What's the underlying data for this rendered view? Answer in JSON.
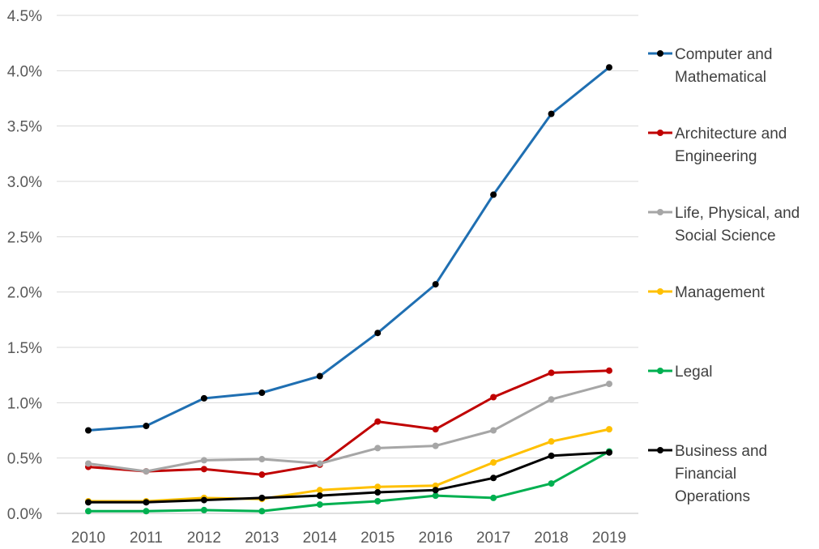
{
  "chart_data": {
    "type": "line",
    "x": [
      "2010",
      "2011",
      "2012",
      "2013",
      "2014",
      "2015",
      "2016",
      "2017",
      "2018",
      "2019"
    ],
    "ylim": [
      0,
      4.5
    ],
    "yticks": [
      0,
      0.5,
      1.0,
      1.5,
      2.0,
      2.5,
      3.0,
      3.5,
      4.0,
      4.5
    ],
    "ytick_labels": [
      "0.0%",
      "0.5%",
      "1.0%",
      "1.5%",
      "2.0%",
      "2.5%",
      "3.0%",
      "3.5%",
      "4.0%",
      "4.5%"
    ],
    "grid": "horizontal",
    "legend_position": "right",
    "title": "",
    "xlabel": "",
    "ylabel": "",
    "series": [
      {
        "name": "Computer and Mathematical",
        "legend_lines": [
          "Computer and",
          "Mathematical"
        ],
        "color": "#1f6fb2",
        "marker_color": "#000000",
        "values": [
          0.75,
          0.79,
          1.04,
          1.09,
          1.24,
          1.63,
          2.07,
          2.88,
          3.61,
          4.03
        ]
      },
      {
        "name": "Architecture and Engineering",
        "legend_lines": [
          "Architecture and",
          "Engineering"
        ],
        "color": "#c00000",
        "marker_color": "#c00000",
        "values": [
          0.42,
          0.38,
          0.4,
          0.35,
          0.44,
          0.83,
          0.76,
          1.05,
          1.27,
          1.29
        ]
      },
      {
        "name": "Life, Physical, and Social Science",
        "legend_lines": [
          "Life, Physical, and",
          "Social Science"
        ],
        "color": "#a6a6a6",
        "marker_color": "#a6a6a6",
        "values": [
          0.45,
          0.38,
          0.48,
          0.49,
          0.45,
          0.59,
          0.61,
          0.75,
          1.03,
          1.17
        ]
      },
      {
        "name": "Management",
        "legend_lines": [
          "Management"
        ],
        "color": "#ffc000",
        "marker_color": "#ffc000",
        "values": [
          0.11,
          0.11,
          0.14,
          0.13,
          0.21,
          0.24,
          0.25,
          0.46,
          0.65,
          0.76
        ]
      },
      {
        "name": "Legal",
        "legend_lines": [
          "Legal"
        ],
        "color": "#00b050",
        "marker_color": "#00b050",
        "values": [
          0.02,
          0.02,
          0.03,
          0.02,
          0.08,
          0.11,
          0.16,
          0.14,
          0.27,
          0.56
        ]
      },
      {
        "name": "Business and Financial Operations",
        "legend_lines": [
          "Business and",
          "Financial",
          "Operations"
        ],
        "color": "#000000",
        "marker_color": "#000000",
        "values": [
          0.1,
          0.1,
          0.12,
          0.14,
          0.16,
          0.19,
          0.21,
          0.32,
          0.52,
          0.55
        ]
      }
    ]
  }
}
